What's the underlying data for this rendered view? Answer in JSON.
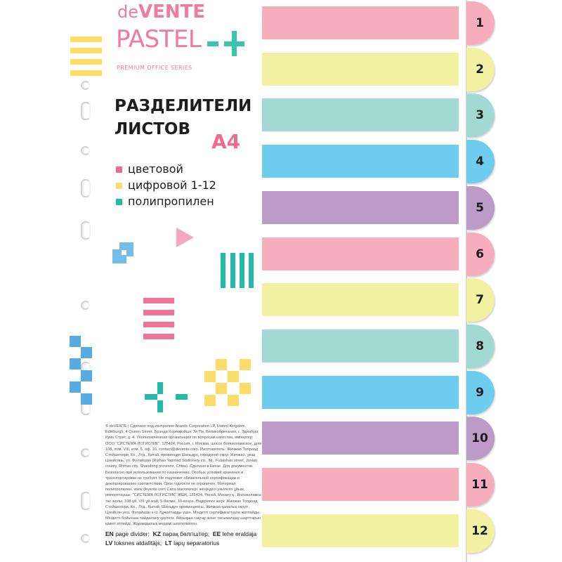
{
  "brand": {
    "prefix": "de",
    "name": "VENTE",
    "line": "PASTEL",
    "series": "PREMIUM OFFICE SERIES"
  },
  "title": {
    "line1": "РАЗДЕЛИТЕЛИ",
    "line2": "ЛИСТОВ",
    "format": "A4"
  },
  "features": [
    {
      "label": "цветовой",
      "color": "#ee6a91"
    },
    {
      "label": "цифровой 1-12",
      "color": "#fddc6c"
    },
    {
      "label": "полипропилен",
      "color": "#22bba7"
    }
  ],
  "legal_text": "© deVENTE | Сделано под контролем Brands Corporation LP, United Kingdom, Edinburgh, 4 Queen Street. Брэнда Корпорэйшн Эл Пи, Великобритания, г. Эдинбург, Куин Стрит, д. 4. Уполномоченная организация по вопросам качества, импортер: ООО \"СИСТЕМА ЛОГИСТИК\", 125424, Россия, г. Москва, шоссе Волоколамское, дом 108, пом. VIII, ком. 5, оф. 10, contact@devente.com. Изготовитель: Жичжао Топроад Стейшенери, Ко., Лтд., Китай, провинция Шаньдун, городской округ Жичжао, уезд Цзюйсянь, ул. Фулайшан (Rizhao Toproad Stationery co., ltd., Fulaishan street, Juxian county, Rizhao city, Shandong province, China). Сделано в Китае. Для документов. Безопасно при использовании по назначению. Особых условий хранения и транспортировки не требует. Не подлежит обязательной сертификации и декларированию соответствия. Срок годности не ограничен. Материал: полипропилен. www.devente.com Сапа масопогері: жеңіндегі уәкілетті ұйым, импорттаушы: \"СИСТЕМА ЛОГИСТИК\" ЖШҚ, 125424, Ресей, Мәскеу қ., Волоколамск тас жолы, 108-үй, VIII үй-жай, 5-бөлме, 10-кеңсе. Өндірілген жері: Жичжао Топроад Стейшенери, Ко., Лтд., Қытай, Шаньдун провинциясы, Жичжао қалалық округі, Цзюйсян уезі, Фулайшан к-сі. Құжаттарды үшін. Міндетті сертификаттауға жатпайды. Міндетті бойынша пайдалану қауіпсіз. Айрықша сақтау және тасымалдау шарттарын қажет етпейді. Жарамдылық мерзімі шектелмеген.",
  "languages": [
    {
      "code": "EN",
      "text": "page divider;"
    },
    {
      "code": "KZ",
      "text": "парақ бөлгіштер;"
    },
    {
      "code": "EE",
      "text": "lehe eraldaja"
    },
    {
      "code": "LV",
      "text": "loksnes atdalītājs;"
    },
    {
      "code": "LT",
      "text": "lapų separatorius"
    }
  ],
  "colors": {
    "pink": "#f6adbc",
    "yellow": "#f2f0a1",
    "teal": "#a2d9d3",
    "blue": "#6ecdee",
    "purple": "#bc9bc9"
  },
  "tabs": [
    {
      "number": "1",
      "color": "pink"
    },
    {
      "number": "2",
      "color": "yellow"
    },
    {
      "number": "3",
      "color": "teal"
    },
    {
      "number": "4",
      "color": "blue"
    },
    {
      "number": "5",
      "color": "purple"
    },
    {
      "number": "6",
      "color": "pink"
    },
    {
      "number": "7",
      "color": "yellow"
    },
    {
      "number": "8",
      "color": "teal"
    },
    {
      "number": "9",
      "color": "blue"
    },
    {
      "number": "10",
      "color": "purple"
    },
    {
      "number": "11",
      "color": "pink"
    },
    {
      "number": "12",
      "color": "yellow"
    }
  ]
}
